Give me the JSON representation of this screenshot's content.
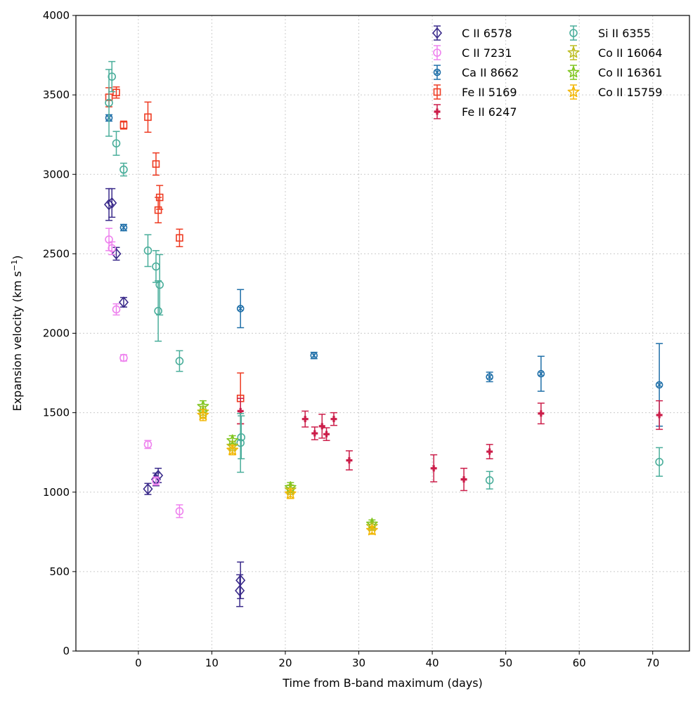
{
  "chart_data": {
    "type": "scatter",
    "title": "",
    "xlabel": "Time from B-band maximum (days)",
    "ylabel": "Expansion velocity (km s",
    "ylabel_sup": "−1",
    "ylabel_suffix": ")",
    "xlim": [
      -8.5,
      75
    ],
    "ylim": [
      0,
      4000
    ],
    "xticks": [
      0,
      10,
      20,
      30,
      40,
      50,
      60,
      70
    ],
    "yticks": [
      0,
      500,
      1000,
      1500,
      2000,
      2500,
      3000,
      3500,
      4000
    ],
    "grid": true,
    "legend_position": "top-right",
    "series": [
      {
        "name": "C II 6578",
        "color": "#3a2a8a",
        "marker": "diamond",
        "points": [
          {
            "x": -4.0,
            "y": 2810,
            "err": 100
          },
          {
            "x": -3.6,
            "y": 2820,
            "err": 90
          },
          {
            "x": -3.0,
            "y": 2500,
            "err": 40
          },
          {
            "x": -2.0,
            "y": 2195,
            "err": 30
          },
          {
            "x": 1.3,
            "y": 1020,
            "err": 35
          },
          {
            "x": 2.4,
            "y": 1080,
            "err": 40
          },
          {
            "x": 2.7,
            "y": 1105,
            "err": 45
          },
          {
            "x": 13.8,
            "y": 380,
            "err": 100
          },
          {
            "x": 13.9,
            "y": 445,
            "err": 115
          }
        ]
      },
      {
        "name": "C II 7231",
        "color": "#ee82ee",
        "marker": "circle",
        "points": [
          {
            "x": -4.0,
            "y": 2590,
            "err": 70
          },
          {
            "x": -3.6,
            "y": 2535,
            "err": 40
          },
          {
            "x": -3.0,
            "y": 2150,
            "err": 35
          },
          {
            "x": -2.0,
            "y": 1845,
            "err": 20
          },
          {
            "x": 1.3,
            "y": 1300,
            "err": 25
          },
          {
            "x": 2.4,
            "y": 1070,
            "err": 25
          },
          {
            "x": 5.6,
            "y": 880,
            "err": 40
          }
        ]
      },
      {
        "name": "Ca II 8662",
        "color": "#1f6fa8",
        "marker": "xcircle",
        "points": [
          {
            "x": -4.0,
            "y": 3355,
            "err": 20
          },
          {
            "x": -2.0,
            "y": 2665,
            "err": 20
          },
          {
            "x": 13.9,
            "y": 2155,
            "err": 120
          },
          {
            "x": 23.9,
            "y": 1860,
            "err": 20
          },
          {
            "x": 47.8,
            "y": 1725,
            "err": 30
          },
          {
            "x": 54.8,
            "y": 1745,
            "err": 110
          },
          {
            "x": 70.9,
            "y": 1675,
            "err": 260
          }
        ]
      },
      {
        "name": "Fe II 5169",
        "color": "#ee3b22",
        "marker": "square",
        "points": [
          {
            "x": -4.0,
            "y": 3485,
            "err": 60
          },
          {
            "x": -3.0,
            "y": 3515,
            "err": 35
          },
          {
            "x": -2.0,
            "y": 3310,
            "err": 25
          },
          {
            "x": 1.3,
            "y": 3360,
            "err": 95
          },
          {
            "x": 2.4,
            "y": 3065,
            "err": 70
          },
          {
            "x": 2.7,
            "y": 2775,
            "err": 80
          },
          {
            "x": 2.9,
            "y": 2855,
            "err": 75
          },
          {
            "x": 5.6,
            "y": 2600,
            "err": 55
          },
          {
            "x": 13.9,
            "y": 1590,
            "err": 160
          }
        ]
      },
      {
        "name": "Fe II 6247",
        "color": "#cc1e4a",
        "marker": "plus",
        "points": [
          {
            "x": 13.9,
            "y": 1510,
            "err": 80
          },
          {
            "x": 22.7,
            "y": 1460,
            "err": 50
          },
          {
            "x": 24.0,
            "y": 1370,
            "err": 40
          },
          {
            "x": 25.0,
            "y": 1415,
            "err": 75
          },
          {
            "x": 25.6,
            "y": 1365,
            "err": 40
          },
          {
            "x": 26.6,
            "y": 1460,
            "err": 40
          },
          {
            "x": 28.7,
            "y": 1200,
            "err": 60
          },
          {
            "x": 40.2,
            "y": 1150,
            "err": 85
          },
          {
            "x": 44.3,
            "y": 1080,
            "err": 70
          },
          {
            "x": 47.8,
            "y": 1255,
            "err": 45
          },
          {
            "x": 54.8,
            "y": 1495,
            "err": 65
          },
          {
            "x": 70.9,
            "y": 1485,
            "err": 90
          }
        ]
      },
      {
        "name": "Si II 6355",
        "color": "#4aae9b",
        "marker": "circle",
        "points": [
          {
            "x": -4.0,
            "y": 3450,
            "err": 210
          },
          {
            "x": -3.6,
            "y": 3615,
            "err": 95
          },
          {
            "x": -3.0,
            "y": 3195,
            "err": 75
          },
          {
            "x": -2.0,
            "y": 3030,
            "err": 40
          },
          {
            "x": 1.3,
            "y": 2520,
            "err": 100
          },
          {
            "x": 2.4,
            "y": 2420,
            "err": 100
          },
          {
            "x": 2.7,
            "y": 2140,
            "err": 190
          },
          {
            "x": 2.9,
            "y": 2305,
            "err": 190
          },
          {
            "x": 5.6,
            "y": 1825,
            "err": 65
          },
          {
            "x": 13.9,
            "y": 1310,
            "err": 185
          },
          {
            "x": 14.0,
            "y": 1345,
            "err": 135
          },
          {
            "x": 47.8,
            "y": 1075,
            "err": 55
          },
          {
            "x": 70.9,
            "y": 1190,
            "err": 90
          }
        ]
      },
      {
        "name": "Co II 16064",
        "color": "#bcbd22",
        "marker": "star",
        "points": [
          {
            "x": 8.8,
            "y": 1505,
            "err": 35
          },
          {
            "x": 12.8,
            "y": 1290,
            "err": 30
          },
          {
            "x": 20.7,
            "y": 1015,
            "err": 30
          },
          {
            "x": 31.8,
            "y": 785,
            "err": 25
          }
        ]
      },
      {
        "name": "Co II 16361",
        "color": "#80c520",
        "marker": "star",
        "points": [
          {
            "x": 8.8,
            "y": 1540,
            "err": 35
          },
          {
            "x": 12.8,
            "y": 1325,
            "err": 30
          },
          {
            "x": 20.7,
            "y": 1030,
            "err": 30
          },
          {
            "x": 31.8,
            "y": 800,
            "err": 25
          }
        ]
      },
      {
        "name": "Co II 15759",
        "color": "#f2b705",
        "marker": "star",
        "points": [
          {
            "x": 8.8,
            "y": 1485,
            "err": 35
          },
          {
            "x": 12.8,
            "y": 1265,
            "err": 30
          },
          {
            "x": 20.7,
            "y": 990,
            "err": 30
          },
          {
            "x": 31.8,
            "y": 760,
            "err": 25
          }
        ]
      }
    ]
  }
}
